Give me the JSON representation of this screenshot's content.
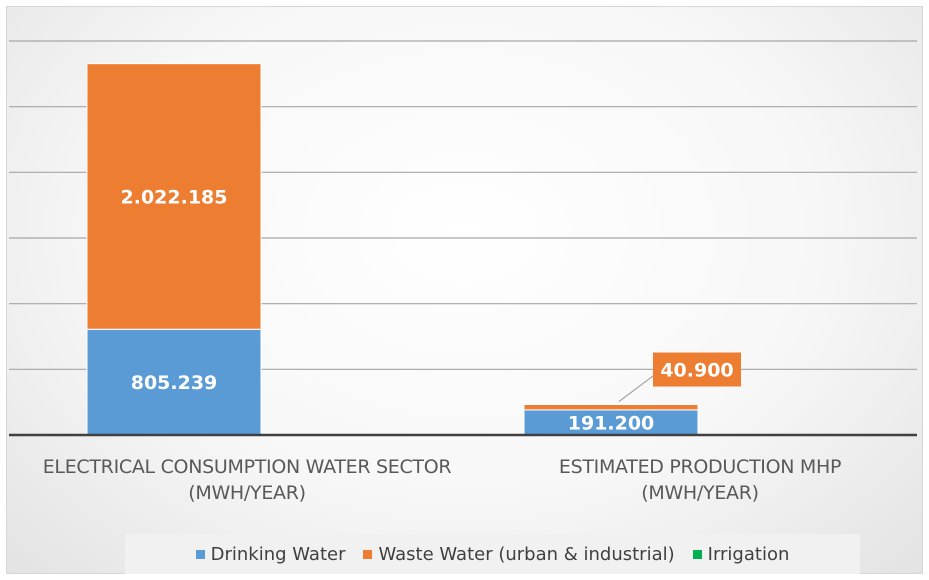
{
  "chart_data": {
    "type": "bar",
    "stacked": true,
    "categories": [
      [
        "ELECTRICAL CONSUMPTION WATER SECTOR",
        "(MWH/YEAR)"
      ],
      [
        "ESTIMATED PRODUCTION MHP",
        "(MWH/YEAR)"
      ]
    ],
    "series": [
      {
        "name": "Drinking Water",
        "color": "#5b9bd5",
        "values": [
          805239,
          191200
        ],
        "labels": [
          "805.239",
          "191.200"
        ]
      },
      {
        "name": "Waste Water (urban & industrial)",
        "color": "#ed7d31",
        "values": [
          2022185,
          40900
        ],
        "labels": [
          "2.022.185",
          "40.900"
        ]
      },
      {
        "name": "Irrigation",
        "color": "#00b050",
        "values": [
          0,
          0
        ],
        "labels": [
          "",
          ""
        ]
      }
    ],
    "ylim": [
      0,
      3000000
    ],
    "y_gridlines": [
      0,
      500000,
      1000000,
      1500000,
      2000000,
      2500000,
      3000000
    ],
    "grid": true,
    "legend": "bottom"
  }
}
